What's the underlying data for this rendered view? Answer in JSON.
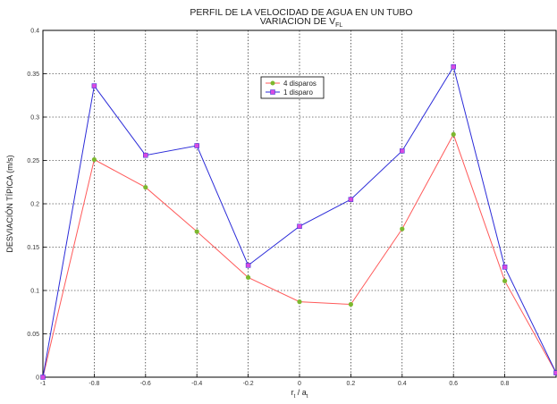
{
  "chart_data": {
    "type": "line",
    "title": "PERFIL DE LA VELOCIDAD DE AGUA EN UN TUBO",
    "subtitle_main": "VARIACION DE  V",
    "subtitle_sub": "FL",
    "xlabel_main": "r",
    "xlabel_sub1": "t",
    "xlabel_sep": " / a",
    "xlabel_sub2": "t",
    "ylabel": "DESVIACIÓN TÍPICA (m/s)",
    "xlim": [
      -1,
      1
    ],
    "ylim": [
      0,
      0.4
    ],
    "xticks": [
      -1,
      -0.8,
      -0.6,
      -0.4,
      -0.2,
      0,
      0.2,
      0.4,
      0.6,
      0.8,
      1
    ],
    "xtick_labels": [
      "-1",
      "-0.8",
      "-0.6",
      "-0.4",
      "-0.2",
      "0",
      "0.2",
      "0.4",
      "0.6",
      "0.8",
      ""
    ],
    "yticks": [
      0,
      0.05,
      0.1,
      0.15,
      0.2,
      0.25,
      0.3,
      0.35,
      0.4
    ],
    "ytick_labels": [
      "0",
      "0.05",
      "0.1",
      "0.15",
      "0.2",
      "0.25",
      "0.3",
      "0.35",
      "0.4"
    ],
    "grid": true,
    "legend_position": "upper-center",
    "x": [
      -1,
      -0.8,
      -0.6,
      -0.4,
      -0.2,
      0,
      0.2,
      0.4,
      0.6,
      0.8,
      1
    ],
    "series": [
      {
        "name": "4 disparos",
        "line_color": "#ff5a5a",
        "marker_color": "#7cb82e",
        "marker": "circle",
        "values": [
          0,
          0.251,
          0.219,
          0.168,
          0.115,
          0.087,
          0.084,
          0.171,
          0.28,
          0.111,
          0.005
        ]
      },
      {
        "name": "1 disparo",
        "line_color": "#2b2bd8",
        "marker_color": "#d84be0",
        "marker": "square",
        "values": [
          0,
          0.336,
          0.256,
          0.267,
          0.129,
          0.174,
          0.205,
          0.261,
          0.358,
          0.127,
          0.005
        ]
      }
    ]
  }
}
